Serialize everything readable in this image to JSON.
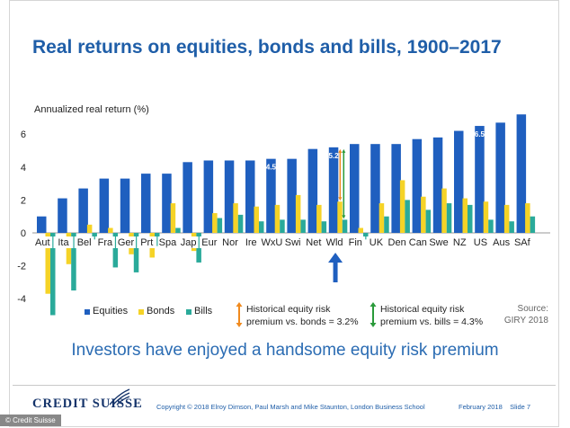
{
  "title": "Real returns on equities, bonds and bills, 1900–2017",
  "tagline": "Investors have enjoyed a handsome equity risk premium",
  "legend": {
    "equities": "Equities",
    "bonds": "Bonds",
    "bills": "Bills"
  },
  "notes": {
    "bonds_line1": "Historical equity risk",
    "bonds_line2": "premium vs. bonds = 3.2%",
    "bills_line1": "Historical equity risk",
    "bills_line2": "premium vs. bills = 4.3%"
  },
  "source": {
    "line1": "Source:",
    "line2": "GIRY 2018"
  },
  "footer": {
    "logo": "CREDIT SUISSE",
    "copyright": "Copyright © 2018 Elroy Dimson, Paul Marsh and Mike Staunton, London Business School",
    "date": "February 2018",
    "slide": "Slide 7",
    "credit": "© Credit Suisse"
  },
  "colors": {
    "equities": "#1f5fbf",
    "bonds": "#f5d327",
    "bills": "#2aaa9a",
    "title": "#1f5ea8",
    "arrow_bonds": "#f08a1e",
    "arrow_bills": "#2a9a3a"
  },
  "chart_data": {
    "type": "bar",
    "ylabel": "Annualized real return (%)",
    "ylim": [
      -5,
      7.5
    ],
    "yticks": [
      -4,
      -2,
      0,
      2,
      4,
      6
    ],
    "grid": false,
    "legend_position": "bottom",
    "categories": [
      "Aut",
      "Ita",
      "Bel",
      "Fra",
      "Ger",
      "Prt",
      "Spa",
      "Jap",
      "Eur",
      "Nor",
      "Ire",
      "WxU",
      "Swi",
      "Net",
      "Wld",
      "Fin",
      "UK",
      "Den",
      "Can",
      "Swe",
      "NZ",
      "US",
      "Aus",
      "SAf"
    ],
    "series": [
      {
        "name": "Equities",
        "values": [
          1.0,
          2.1,
          2.7,
          3.3,
          3.3,
          3.6,
          3.6,
          4.3,
          4.4,
          4.4,
          4.4,
          4.5,
          4.5,
          5.1,
          5.2,
          5.4,
          5.4,
          5.4,
          5.7,
          5.8,
          6.2,
          6.5,
          6.7,
          7.2
        ]
      },
      {
        "name": "Bonds",
        "values": [
          -3.7,
          -1.9,
          0.5,
          0.3,
          -1.3,
          -1.5,
          1.8,
          -1.1,
          1.2,
          1.8,
          1.6,
          1.7,
          2.3,
          1.7,
          1.9,
          0.3,
          1.8,
          3.2,
          2.2,
          2.7,
          2.1,
          1.9,
          1.7,
          1.8
        ]
      },
      {
        "name": "Bills",
        "values": [
          -5.0,
          -3.5,
          -0.4,
          -2.1,
          -2.4,
          -0.8,
          0.3,
          -1.8,
          0.9,
          1.1,
          0.7,
          0.8,
          0.8,
          0.7,
          0.8,
          -0.4,
          1.0,
          2.0,
          1.4,
          1.8,
          1.7,
          0.8,
          0.7,
          1.0
        ]
      }
    ],
    "annotations": [
      {
        "category": "WxU",
        "label": "4.5"
      },
      {
        "category": "Wld",
        "label": "5.2"
      },
      {
        "category": "US",
        "label": "6.5"
      }
    ],
    "highlight_category": "Wld"
  }
}
